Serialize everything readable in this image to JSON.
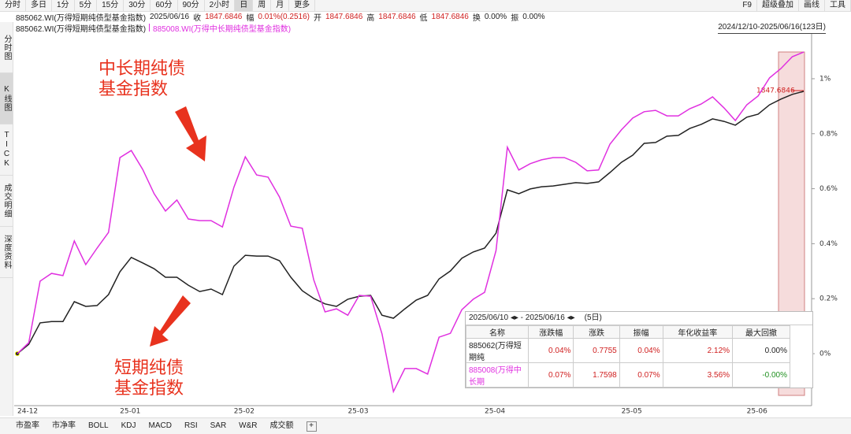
{
  "toolbar": {
    "left": [
      "分时",
      "多日",
      "1分",
      "5分",
      "15分",
      "30分",
      "60分",
      "90分",
      "2小时",
      "日",
      "周",
      "月",
      "更多"
    ],
    "right": [
      "F9",
      "超级叠加",
      "画线",
      "工具"
    ]
  },
  "info_bar": {
    "code": "885062.WI(万得短期纯债型基金指数)",
    "date": "2025/06/16",
    "items": [
      {
        "label": "收",
        "value": "1847.6846"
      },
      {
        "label": "幅",
        "value": "0.01%(0.2516)"
      },
      {
        "label": "开",
        "value": "1847.6846"
      },
      {
        "label": "高",
        "value": "1847.6846"
      },
      {
        "label": "低",
        "value": "1847.6846"
      },
      {
        "label": "换",
        "value": "0.00%"
      },
      {
        "label": "振",
        "value": "0.00%"
      }
    ]
  },
  "sidebar": [
    "分时图",
    "K线图",
    "TICK",
    "成交明细",
    "深度资料"
  ],
  "date_range": "2024/12/10-2025/06/16(123日)",
  "chart_data": {
    "type": "line",
    "categories": [
      "24-12",
      null,
      null,
      null,
      null,
      null,
      null,
      null,
      null,
      "25-01",
      null,
      null,
      null,
      null,
      null,
      null,
      null,
      null,
      null,
      "25-02",
      null,
      null,
      null,
      null,
      null,
      null,
      null,
      null,
      null,
      "25-03",
      null,
      null,
      null,
      null,
      null,
      null,
      null,
      null,
      null,
      null,
      null,
      "25-04",
      null,
      null,
      null,
      null,
      null,
      null,
      null,
      null,
      null,
      null,
      null,
      "25-05",
      null,
      null,
      null,
      null,
      null,
      null,
      null,
      null,
      null,
      null,
      "25-06",
      null,
      null,
      null,
      null,
      null
    ],
    "series": [
      {
        "name": "885062.WI(万得短期纯债型基金指数)",
        "color": "#222222",
        "values": [
          0,
          0.034,
          0.112,
          0.117,
          0.117,
          0.189,
          0.172,
          0.175,
          0.215,
          0.298,
          0.35,
          0.33,
          0.309,
          0.278,
          0.278,
          0.249,
          0.226,
          0.235,
          0.215,
          0.318,
          0.358,
          0.355,
          0.355,
          0.338,
          0.278,
          0.229,
          0.201,
          0.181,
          0.172,
          0.198,
          0.209,
          0.212,
          0.14,
          0.129,
          0.163,
          0.195,
          0.212,
          0.272,
          0.301,
          0.347,
          0.37,
          0.384,
          0.438,
          0.596,
          0.582,
          0.599,
          0.607,
          0.61,
          0.616,
          0.622,
          0.619,
          0.625,
          0.659,
          0.696,
          0.722,
          0.765,
          0.768,
          0.791,
          0.794,
          0.819,
          0.834,
          0.854,
          0.845,
          0.831,
          0.86,
          0.871,
          0.905,
          0.926,
          0.943,
          0.954
        ]
      },
      {
        "name": "885008.WI(万得中长期纯债型基金指数)",
        "color": "#e030e0",
        "values": [
          0,
          0.04,
          0.264,
          0.292,
          0.284,
          0.41,
          0.324,
          0.384,
          0.441,
          0.713,
          0.739,
          0.67,
          0.582,
          0.519,
          0.559,
          0.49,
          0.484,
          0.484,
          0.461,
          0.605,
          0.716,
          0.65,
          0.642,
          0.57,
          0.464,
          0.456,
          0.269,
          0.152,
          0.163,
          0.14,
          0.212,
          0.209,
          0.072,
          -0.138,
          -0.054,
          -0.054,
          -0.074,
          0.06,
          0.074,
          0.16,
          0.198,
          0.223,
          0.375,
          0.751,
          0.668,
          0.691,
          0.705,
          0.713,
          0.713,
          0.696,
          0.665,
          0.668,
          0.762,
          0.814,
          0.857,
          0.88,
          0.885,
          0.865,
          0.865,
          0.891,
          0.908,
          0.934,
          0.894,
          0.848,
          0.905,
          0.937,
          1.003,
          1.037,
          1.08,
          1.097
        ]
      }
    ],
    "ylim": [
      -0.189,
      1.166
    ],
    "yticks": [
      {
        "value": 0,
        "label": "0%"
      },
      {
        "value": 0.2,
        "label": "0.2%"
      },
      {
        "value": 0.4,
        "label": "0.4%"
      },
      {
        "value": 0.6,
        "label": "0.6%"
      },
      {
        "value": 0.8,
        "label": "0.8%"
      },
      {
        "value": 1,
        "label": "1%"
      }
    ],
    "annotations": [
      [
        "中长期纯债",
        "基金指数"
      ],
      [
        "短期纯债",
        "基金指数"
      ]
    ],
    "last_value_label": "1847.6846"
  },
  "stats_table": {
    "range": "2025/06/10 ◂▸ - 2025/06/16 ◂▸",
    "days": "(5日)",
    "columns": [
      "名称",
      "涨跌幅",
      "涨跌",
      "振幅",
      "年化收益率",
      "最大回撤"
    ],
    "rows": [
      [
        "885062(万得短期纯",
        "0.04%",
        "0.7755",
        "0.04%",
        "2.12%",
        "0.00%"
      ],
      [
        "885008(万得中长期",
        "0.07%",
        "1.7598",
        "0.07%",
        "3.56%",
        "-0.00%"
      ]
    ]
  },
  "bottom_tabs": [
    "市盈率",
    "市净率",
    "BOLL",
    "KDJ",
    "MACD",
    "RSI",
    "SAR",
    "W&R",
    "成交额"
  ]
}
